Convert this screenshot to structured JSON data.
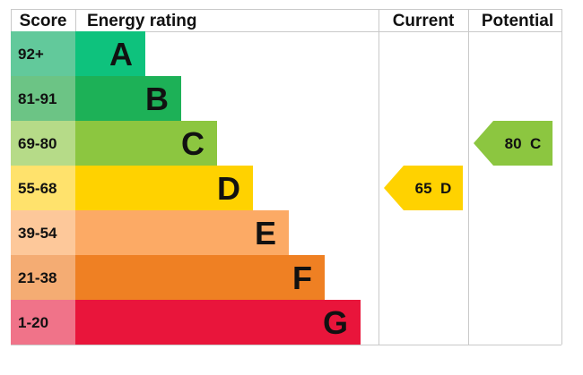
{
  "headers": {
    "score": "Score",
    "rating": "Energy rating",
    "current": "Current",
    "potential": "Potential"
  },
  "chart_data": {
    "type": "bar",
    "bands": [
      {
        "score": "92+",
        "letter": "A",
        "color": "#0ec27d",
        "score_color": "#62c99b"
      },
      {
        "score": "81-91",
        "letter": "B",
        "color": "#1db157",
        "score_color": "#6cc485"
      },
      {
        "score": "69-80",
        "letter": "C",
        "color": "#8cc640",
        "score_color": "#b6db88"
      },
      {
        "score": "55-68",
        "letter": "D",
        "color": "#ffd200",
        "score_color": "#ffe26c"
      },
      {
        "score": "39-54",
        "letter": "E",
        "color": "#fcaa65",
        "score_color": "#fdc89a"
      },
      {
        "score": "21-38",
        "letter": "F",
        "color": "#ef8023",
        "score_color": "#f4ac73"
      },
      {
        "score": "1-20",
        "letter": "G",
        "color": "#e9153b",
        "score_color": "#f07389"
      }
    ],
    "current": {
      "value": 65,
      "band": "D",
      "label": "65  D",
      "color": "#ffd200"
    },
    "potential": {
      "value": 80,
      "band": "C",
      "label": "80  C",
      "color": "#8cc640"
    }
  }
}
